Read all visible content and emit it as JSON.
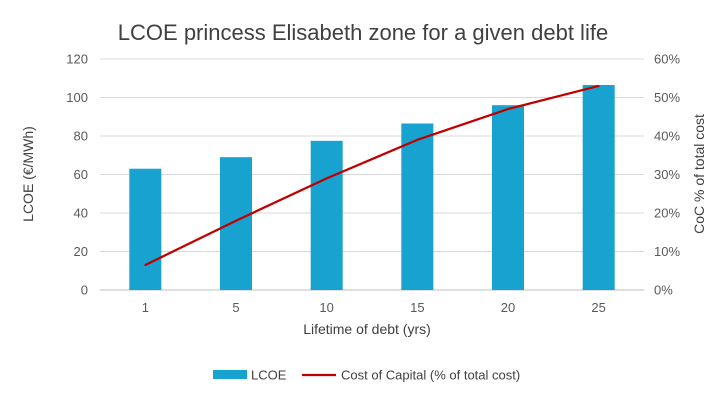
{
  "chart_data": {
    "type": "bar",
    "title": "LCOE princess Elisabeth zone for a given debt life",
    "xlabel": "Lifetime of debt (yrs)",
    "ylabel": "LCOE (€/MWh)",
    "y2label": "CoC % of total cost",
    "categories": [
      "1",
      "5",
      "10",
      "15",
      "20",
      "25"
    ],
    "ylim": [
      0,
      120
    ],
    "yticks": [
      "0",
      "20",
      "40",
      "60",
      "80",
      "100",
      "120"
    ],
    "y2lim": [
      0,
      60
    ],
    "y2ticks": [
      "0%",
      "10%",
      "20%",
      "30%",
      "40%",
      "50%",
      "60%"
    ],
    "grid": true,
    "legend_position": "bottom",
    "series": [
      {
        "name": "LCOE",
        "type": "bar",
        "axis": "left",
        "color": "#17a2cf",
        "values": [
          63,
          69,
          77.5,
          86.5,
          96,
          106.5
        ]
      },
      {
        "name": "Cost of Capital (% of total cost)",
        "type": "line",
        "axis": "right",
        "color": "#c00000",
        "values": [
          6.5,
          18,
          29,
          39,
          47,
          53
        ]
      }
    ]
  }
}
